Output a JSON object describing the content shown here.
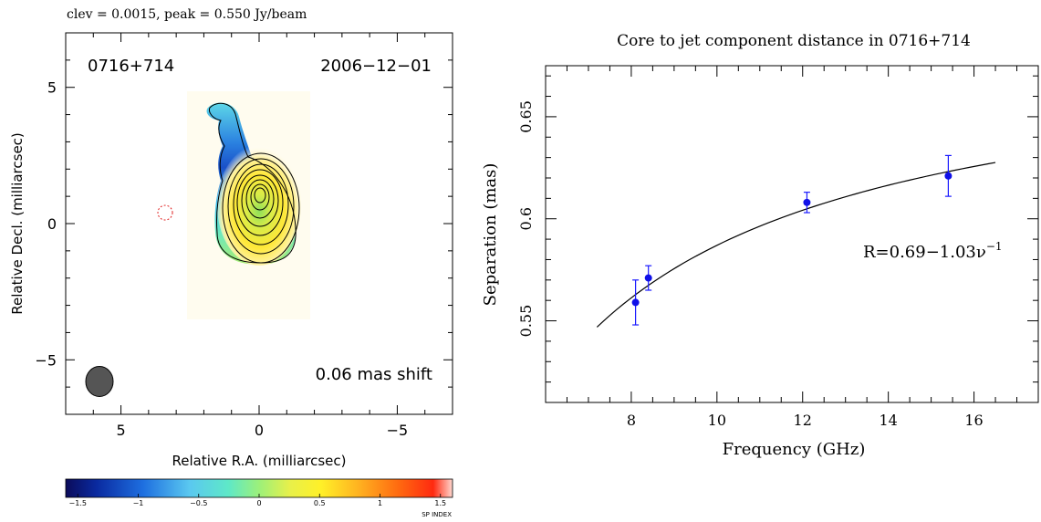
{
  "chart_data": [
    {
      "type": "heatmap",
      "header": "clev = 0.0015, peak = 0.550 Jy/beam",
      "source_label": "0716+714",
      "date_label": "2006−12−01",
      "shift_label": "0.06 mas shift",
      "xlabel": "Relative R.A. (milliarcsec)",
      "ylabel": "Relative Decl. (milliarcsec)",
      "xlim": [
        7,
        -7
      ],
      "ylim": [
        -7,
        7
      ],
      "xticks": [
        5,
        0,
        -5
      ],
      "xtick_labels": [
        "5",
        "0",
        "−5"
      ],
      "yticks": [
        5,
        0,
        -5
      ],
      "ytick_labels": [
        "5",
        "0",
        "−5"
      ],
      "contour_peak_position": [
        0.0,
        0.1
      ],
      "red_marker_position": [
        3.4,
        0.4
      ],
      "colorbar": {
        "label": "SP INDEX",
        "range": [
          -1.6,
          1.6
        ],
        "ticks": [
          -1.5,
          -1,
          -0.5,
          0,
          0.5,
          1,
          1.5
        ],
        "tick_labels": [
          "−1.5",
          "−1",
          "−0.5",
          "0",
          "0.5",
          "1",
          "1.5"
        ]
      }
    },
    {
      "type": "scatter",
      "title": "Core to jet component distance in 0716+714",
      "xlabel": "Frequency (GHz)",
      "ylabel": "Separation (mas)",
      "xlim": [
        6,
        17.5
      ],
      "ylim": [
        0.51,
        0.675
      ],
      "xticks": [
        8,
        10,
        12,
        14,
        16
      ],
      "xtick_labels": [
        "8",
        "10",
        "12",
        "14",
        "16"
      ],
      "yticks": [
        0.55,
        0.6,
        0.65
      ],
      "ytick_labels": [
        "0.55",
        "0.6",
        "0.65"
      ],
      "points": [
        {
          "x": 8.1,
          "y": 0.559,
          "err": 0.011
        },
        {
          "x": 8.4,
          "y": 0.571,
          "err": 0.006
        },
        {
          "x": 12.1,
          "y": 0.608,
          "err": 0.005
        },
        {
          "x": 15.4,
          "y": 0.621,
          "err": 0.01
        }
      ],
      "fit": {
        "a": 0.69,
        "b": 1.03,
        "x_range": [
          7.2,
          16.5
        ]
      },
      "fit_label": "R=0.69−1.03ν",
      "fit_label_exp": "−1"
    }
  ]
}
